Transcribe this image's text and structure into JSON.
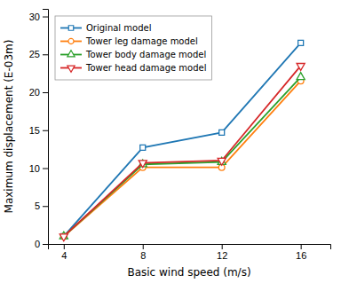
{
  "chart_data": {
    "type": "line",
    "x": [
      4,
      8,
      12,
      16
    ],
    "series": [
      {
        "name": "Original model",
        "values": [
          1.0,
          12.7,
          14.7,
          26.5
        ],
        "marker": "square"
      },
      {
        "name": "Tower leg damage model",
        "values": [
          1.0,
          10.1,
          10.1,
          21.5
        ],
        "marker": "circle"
      },
      {
        "name": "Tower body damage model",
        "values": [
          1.0,
          10.5,
          10.8,
          22.0
        ],
        "marker": "triangle-up"
      },
      {
        "name": "Tower head damage model",
        "values": [
          1.0,
          10.7,
          11.0,
          23.5
        ],
        "marker": "triangle-down"
      }
    ],
    "xlabel": "Basic wind speed (m/s)",
    "ylabel": "Maximum displacement (E-03m)",
    "xlim": [
      3.2,
      17.5
    ],
    "ylim": [
      0,
      31
    ],
    "xticks": [
      4,
      8,
      12,
      16
    ],
    "yticks": [
      0,
      5,
      10,
      15,
      20,
      25,
      30
    ],
    "legend": "upper left",
    "grid": false
  }
}
